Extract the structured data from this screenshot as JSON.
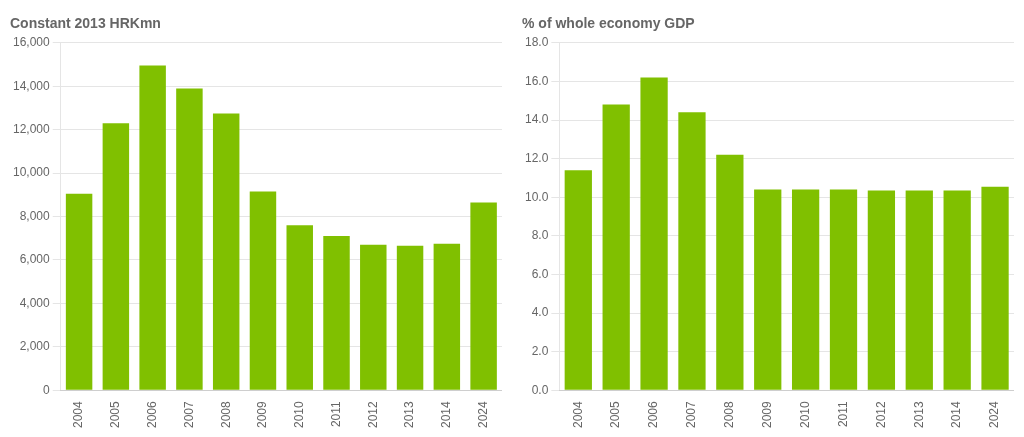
{
  "chart_data": [
    {
      "type": "bar",
      "title": "Constant 2013 HRKmn",
      "categories": [
        "2004",
        "2005",
        "2006",
        "2007",
        "2008",
        "2009",
        "2010",
        "2011",
        "2012",
        "2013",
        "2014",
        "2024"
      ],
      "values": [
        9050,
        12300,
        14950,
        13900,
        12750,
        9150,
        7600,
        7100,
        6700,
        6650,
        6750,
        8650
      ],
      "color": "#80c000",
      "ylim": [
        0,
        16000
      ],
      "yticks": [
        0,
        {
          "value": 2000,
          "label": "2,000"
        },
        {
          "value": 4000,
          "label": "4,000"
        },
        {
          "value": 6000,
          "label": "6,000"
        },
        {
          "value": 8000,
          "label": "8,000"
        },
        {
          "value": 10000,
          "label": "10,000"
        },
        {
          "value": 12000,
          "label": "12,000"
        },
        {
          "value": 14000,
          "label": "14,000"
        },
        {
          "value": 16000,
          "label": "16,000"
        }
      ],
      "grid": true
    },
    {
      "type": "bar",
      "title": "% of whole economy GDP",
      "categories": [
        "2004",
        "2005",
        "2006",
        "2007",
        "2008",
        "2009",
        "2010",
        "2011",
        "2012",
        "2013",
        "2014",
        "2024"
      ],
      "values": [
        11.4,
        14.8,
        16.2,
        14.4,
        12.2,
        10.4,
        10.4,
        10.4,
        10.35,
        10.35,
        10.35,
        10.55
      ],
      "color": "#80c000",
      "ylim": [
        0.0,
        18.0
      ],
      "yticks": [
        {
          "value": 0.0,
          "label": "0.0"
        },
        {
          "value": 2.0,
          "label": "2.0"
        },
        {
          "value": 4.0,
          "label": "4.0"
        },
        {
          "value": 6.0,
          "label": "6.0"
        },
        {
          "value": 8.0,
          "label": "8.0"
        },
        {
          "value": 10.0,
          "label": "10.0"
        },
        {
          "value": 12.0,
          "label": "12.0"
        },
        {
          "value": 14.0,
          "label": "14.0"
        },
        {
          "value": 16.0,
          "label": "16.0"
        },
        {
          "value": 18.0,
          "label": "18.0"
        }
      ],
      "grid": true
    }
  ]
}
